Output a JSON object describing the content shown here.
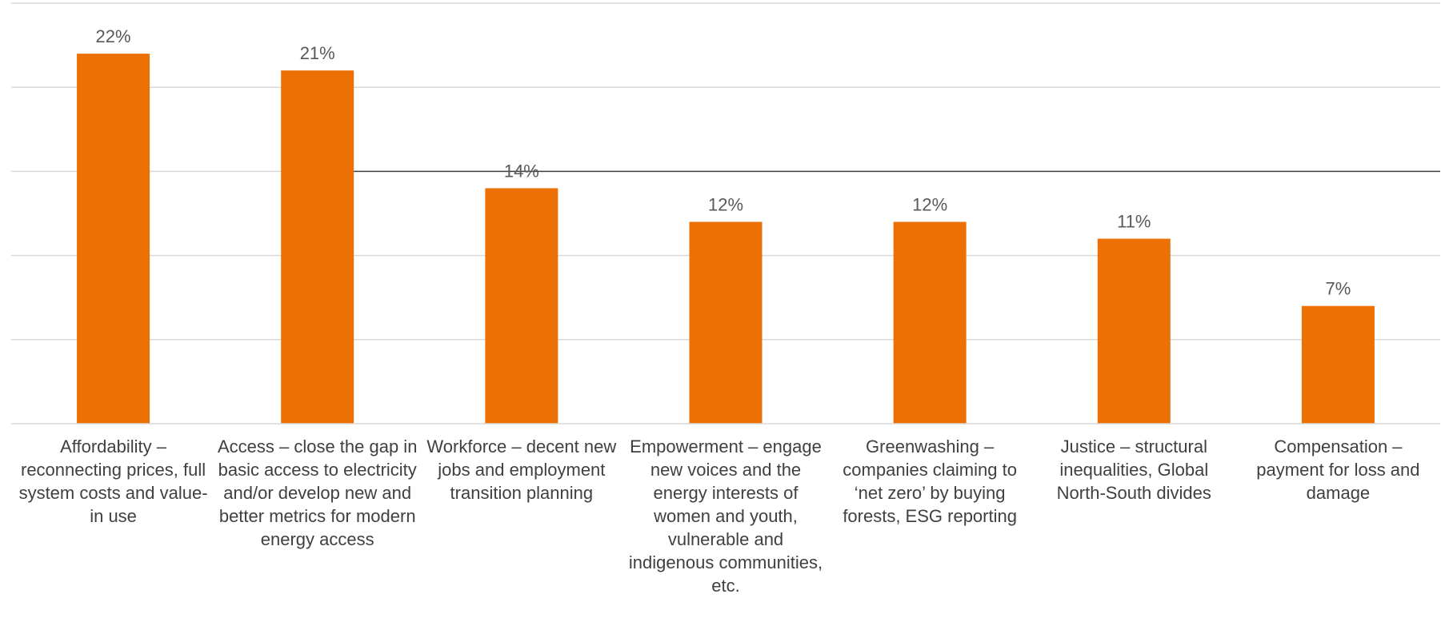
{
  "chart_data": {
    "type": "bar",
    "title": "",
    "xlabel": "",
    "ylabel": "",
    "ylim": [
      0,
      25
    ],
    "grid": true,
    "bar_color": "#ED7004",
    "reference_line_color": "#404040",
    "categories": [
      "Affordability – reconnecting prices, full system costs and value-in use",
      "Access – close the gap in basic access to electricity and/or develop new and better metrics for modern energy access",
      "Workforce – decent new jobs and employment transition planning",
      "Empowerment – engage new voices and the energy interests of women and youth, vulnerable and indigenous communities, etc.",
      "Greenwashing – companies claiming to ‘net zero’ by buying forests, ESG reporting",
      "Justice – structural inequalities, Global North-South divides",
      "Compensation – payment for loss and damage"
    ],
    "values": [
      22,
      21,
      14,
      12,
      12,
      11,
      7
    ],
    "value_labels": [
      "22%",
      "21%",
      "14%",
      "12%",
      "12%",
      "11%",
      "7%"
    ]
  }
}
